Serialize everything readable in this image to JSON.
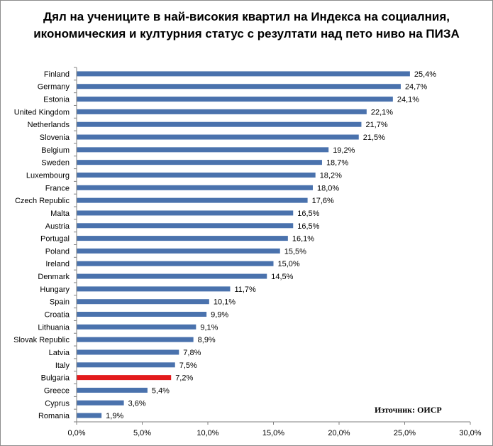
{
  "chart_data": {
    "type": "bar",
    "orientation": "horizontal",
    "title": "Дял на учениците в най-високия квартил на Индекса на социалния, икономическия и културния статус с  резултати над пето ниво на ПИЗА",
    "categories": [
      "Finland",
      "Germany",
      "Estonia",
      "United Kingdom",
      "Netherlands",
      "Slovenia",
      "Belgium",
      "Sweden",
      "Luxembourg",
      "France",
      "Czech Republic",
      "Malta",
      "Austria",
      "Portugal",
      "Poland",
      "Ireland",
      "Denmark",
      "Hungary",
      "Spain",
      "Croatia",
      "Lithuania",
      "Slovak Republic",
      "Latvia",
      "Italy",
      "Bulgaria",
      "Greece",
      "Cyprus",
      "Romania"
    ],
    "values": [
      25.4,
      24.7,
      24.1,
      22.1,
      21.7,
      21.5,
      19.2,
      18.7,
      18.2,
      18.0,
      17.6,
      16.5,
      16.5,
      16.1,
      15.5,
      15.0,
      14.5,
      11.7,
      10.1,
      9.9,
      9.1,
      8.9,
      7.8,
      7.5,
      7.2,
      5.4,
      3.6,
      1.9
    ],
    "value_labels": [
      "25,4%",
      "24,7%",
      "24,1%",
      "22,1%",
      "21,7%",
      "21,5%",
      "19,2%",
      "18,7%",
      "18,2%",
      "18,0%",
      "17,6%",
      "16,5%",
      "16,5%",
      "16,1%",
      "15,5%",
      "15,0%",
      "14,5%",
      "11,7%",
      "10,1%",
      "9,9%",
      "9,1%",
      "8,9%",
      "7,8%",
      "7,5%",
      "7,2%",
      "5,4%",
      "3,6%",
      "1,9%"
    ],
    "xlim": [
      0,
      30
    ],
    "x_ticks": [
      0,
      5,
      10,
      15,
      20,
      25,
      30
    ],
    "x_tick_labels": [
      "0,0%",
      "5,0%",
      "10,0%",
      "15,0%",
      "20,0%",
      "25,0%",
      "30,0%"
    ],
    "highlight_category": "Bulgaria",
    "colors": {
      "bar": "#4a72ad",
      "highlight": "#e31a1c",
      "axis": "#808080"
    },
    "grid": false,
    "legend": "none"
  },
  "source_note": "Източник: ОИСР"
}
